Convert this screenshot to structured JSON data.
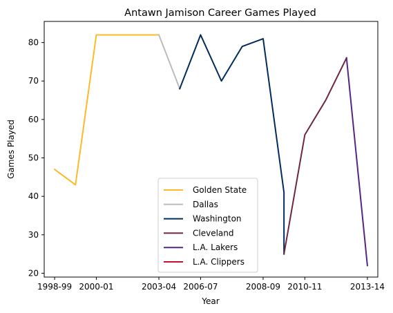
{
  "chart_data": {
    "type": "line",
    "title": "Antawn Jamison Career Games Played",
    "xlabel": "Year",
    "ylabel": "Games Played",
    "xlim": [
      -0.5,
      15.5
    ],
    "ylim": [
      19,
      85.5
    ],
    "x_ticks": [
      {
        "pos": 0,
        "label": "1998-99"
      },
      {
        "pos": 2,
        "label": "2000-01"
      },
      {
        "pos": 5,
        "label": "2003-04"
      },
      {
        "pos": 7,
        "label": "2006-07"
      },
      {
        "pos": 10,
        "label": "2008-09"
      },
      {
        "pos": 12,
        "label": "2010-11"
      },
      {
        "pos": 15,
        "label": "2013-14"
      }
    ],
    "y_ticks": [
      20,
      30,
      40,
      50,
      60,
      70,
      80
    ],
    "grid": false,
    "legend_position": "lower center",
    "series": [
      {
        "name": "Golden State",
        "color": "#FDB927",
        "points": [
          [
            0,
            47
          ],
          [
            1,
            43
          ],
          [
            2,
            82
          ],
          [
            3,
            82
          ],
          [
            4,
            82
          ],
          [
            5,
            82
          ]
        ]
      },
      {
        "name": "Dallas",
        "color": "#BBBBBB",
        "points": [
          [
            5,
            82
          ],
          [
            6,
            68
          ]
        ]
      },
      {
        "name": "Washington",
        "color": "#002B5C",
        "points": [
          [
            6,
            68
          ],
          [
            7,
            82
          ],
          [
            8,
            70
          ],
          [
            9,
            79
          ],
          [
            10,
            81
          ],
          [
            11,
            41
          ],
          [
            11,
            25
          ]
        ]
      },
      {
        "name": "Cleveland",
        "color": "#6F263D",
        "points": [
          [
            11,
            25
          ],
          [
            12,
            56
          ],
          [
            13,
            65
          ],
          [
            14,
            76
          ]
        ]
      },
      {
        "name": "L.A. Lakers",
        "color": "#552583",
        "points": [
          [
            14,
            76
          ],
          [
            15,
            22
          ]
        ]
      },
      {
        "name": "L.A. Clippers",
        "color": "#C8102E",
        "points": []
      }
    ]
  }
}
